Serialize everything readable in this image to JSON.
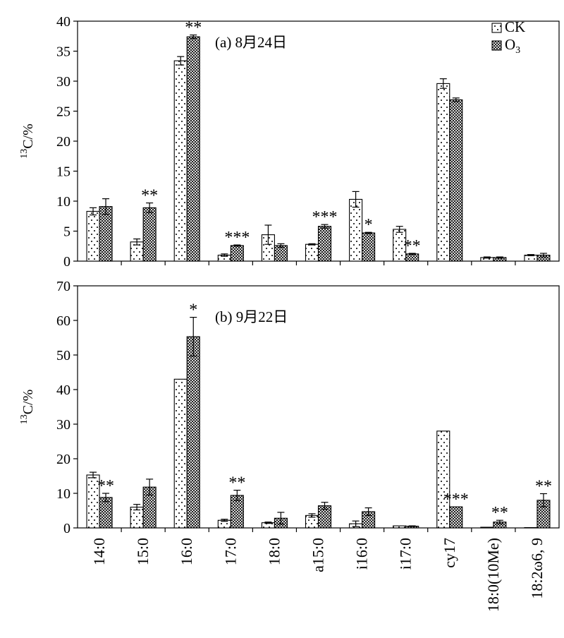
{
  "chart_data": [
    {
      "type": "bar",
      "title": "(a) 8月24日",
      "ylabel_sup": "13",
      "ylabel_main": "C/%",
      "ylim": [
        0,
        40
      ],
      "yticks": [
        0,
        5,
        10,
        15,
        20,
        25,
        30,
        35,
        40
      ],
      "categories": [
        "14:0",
        "15:0",
        "16:0",
        "17:0",
        "18:0",
        "a15:0",
        "i16:0",
        "i17:0",
        "cy17",
        "18:0(10Me)",
        "18:2ω6, 9"
      ],
      "legend_position": "top-right",
      "series": [
        {
          "name": "CK",
          "values": [
            8.3,
            3.2,
            33.4,
            1.0,
            4.4,
            2.8,
            10.3,
            5.3,
            29.6,
            0.6,
            1.0
          ],
          "errors": [
            0.6,
            0.5,
            0.7,
            0.2,
            1.6,
            0.1,
            1.3,
            0.5,
            0.8,
            0.1,
            0.1
          ]
        },
        {
          "name": "O",
          "values": [
            9.1,
            8.9,
            37.4,
            2.6,
            2.6,
            5.8,
            4.7,
            1.2,
            26.9,
            0.6,
            1.0
          ],
          "errors": [
            1.3,
            0.8,
            0.3,
            0.1,
            0.3,
            0.3,
            0.1,
            0.1,
            0.3,
            0.1,
            0.3
          ]
        }
      ],
      "annotations": [
        {
          "category": "15:0",
          "text": "**"
        },
        {
          "category": "16:0",
          "text": "**"
        },
        {
          "category": "17:0",
          "text": "***"
        },
        {
          "category": "a15:0",
          "text": "***"
        },
        {
          "category": "i16:0",
          "text": "*"
        },
        {
          "category": "i17:0",
          "text": "**"
        }
      ]
    },
    {
      "type": "bar",
      "title": "(b) 9月22日",
      "ylabel_sup": "13",
      "ylabel_main": "C/%",
      "ylim": [
        0,
        70
      ],
      "yticks": [
        0,
        10,
        20,
        30,
        40,
        50,
        60,
        70
      ],
      "categories": [
        "14:0",
        "15:0",
        "16:0",
        "17:0",
        "18:0",
        "a15:0",
        "i16:0",
        "i17:0",
        "cy17",
        "18:0(10Me)",
        "18:2ω6, 9"
      ],
      "series": [
        {
          "name": "CK",
          "values": [
            15.3,
            6.0,
            43.0,
            2.2,
            1.5,
            3.6,
            1.2,
            0.6,
            28.0,
            0.2,
            0.1
          ],
          "errors": [
            0.8,
            0.8,
            0,
            0.3,
            0.2,
            0.5,
            0.8,
            0,
            0,
            0,
            0
          ]
        },
        {
          "name": "O",
          "values": [
            8.8,
            11.8,
            55.3,
            9.4,
            2.8,
            6.4,
            4.7,
            0.5,
            6.1,
            1.7,
            8.0
          ],
          "errors": [
            1.2,
            2.3,
            5.6,
            1.5,
            1.7,
            1.0,
            1.1,
            0.1,
            0,
            0.5,
            1.9
          ]
        }
      ],
      "annotations": [
        {
          "category": "14:0",
          "text": "**"
        },
        {
          "category": "16:0",
          "text": "*"
        },
        {
          "category": "17:0",
          "text": "**"
        },
        {
          "category": "cy17",
          "text": "***"
        },
        {
          "category": "18:0(10Me)",
          "text": "**"
        },
        {
          "category": "18:2ω6, 9",
          "text": "**"
        }
      ]
    }
  ],
  "legend": {
    "entries": [
      {
        "label": "CK",
        "pattern": "dots"
      },
      {
        "label": "O",
        "sub": "3",
        "pattern": "crosshatch"
      }
    ]
  }
}
